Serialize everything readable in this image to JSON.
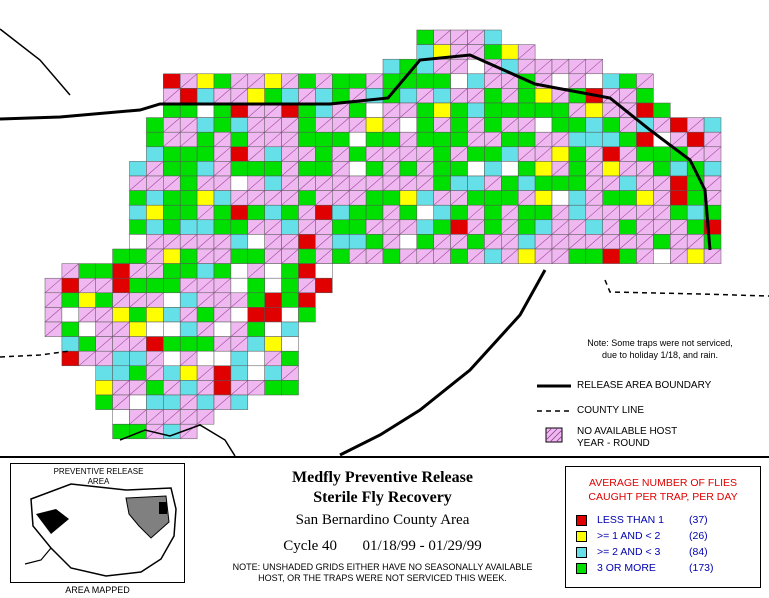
{
  "map": {
    "note_lines": [
      "Note: Some traps were not serviced,",
      "due to holiday 1/18, and rain."
    ],
    "legend_lines": [
      {
        "type": "boundary",
        "label": "RELEASE AREA BOUNDARY"
      },
      {
        "type": "county",
        "label": "COUNTY LINE"
      },
      {
        "type": "nohost",
        "label1": "NO AVAILABLE HOST",
        "label2": "YEAR - ROUND"
      }
    ]
  },
  "inset": {
    "title_line1": "PREVENTIVE RELEASE",
    "title_line2": "AREA",
    "caption": "AREA MAPPED"
  },
  "title": {
    "line1": "Medfly Preventive Release",
    "line2": "Sterile Fly Recovery",
    "subtitle": "San Bernardino County Area",
    "cycle": "Cycle 40",
    "dates": "01/18/99 - 01/29/99"
  },
  "footnote": {
    "line1": "NOTE: UNSHADED GRIDS EITHER HAVE NO SEASONALLY AVAILABLE",
    "line2": "HOST, OR THE TRAPS WERE NOT SERVICED THIS WEEK."
  },
  "legend": {
    "title_line1": "AVERAGE NUMBER OF FLIES",
    "title_line2": "CAUGHT PER TRAP, PER DAY",
    "categories": [
      {
        "label": "LESS THAN 1",
        "count": "(37)",
        "color": "#e00000"
      },
      {
        "label": ">= 1 AND < 2",
        "count": "(26)",
        "color": "#ffff00"
      },
      {
        "label": ">= 2 AND < 3",
        "count": "(84)",
        "color": "#66e0e8"
      },
      {
        "label": "3 OR MORE",
        "count": "(173)",
        "color": "#00e000"
      }
    ]
  },
  "colors": {
    "nohost": "#f0b8f0",
    "boundary": "#000000"
  }
}
